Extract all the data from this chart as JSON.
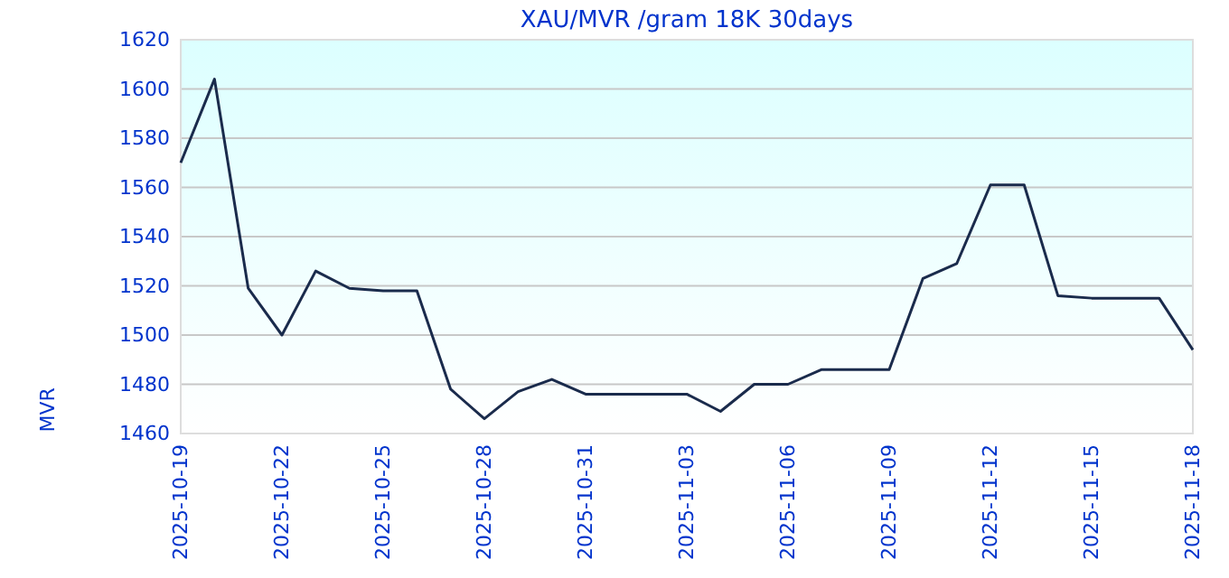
{
  "chart_data": {
    "type": "line",
    "title": "XAU/MVR /gram 18K 30days",
    "ylabel": "MVR",
    "x": [
      "2025-10-19",
      "2025-10-20",
      "2025-10-21",
      "2025-10-22",
      "2025-10-23",
      "2025-10-24",
      "2025-10-25",
      "2025-10-26",
      "2025-10-27",
      "2025-10-28",
      "2025-10-29",
      "2025-10-30",
      "2025-10-31",
      "2025-11-01",
      "2025-11-02",
      "2025-11-03",
      "2025-11-04",
      "2025-11-05",
      "2025-11-06",
      "2025-11-07",
      "2025-11-08",
      "2025-11-09",
      "2025-11-10",
      "2025-11-11",
      "2025-11-12",
      "2025-11-13",
      "2025-11-14",
      "2025-11-15",
      "2025-11-16",
      "2025-11-17",
      "2025-11-18"
    ],
    "series": [
      {
        "color": "#1a2b4c",
        "values": [
          1570,
          1604,
          1519,
          1500,
          1526,
          1519,
          1518,
          1518,
          1478,
          1466,
          1477,
          1482,
          1476,
          1476,
          1476,
          1476,
          1469,
          1480,
          1480,
          1486,
          1486,
          1486,
          1523,
          1529,
          1561,
          1561,
          1516,
          1515,
          1515,
          1515,
          1494
        ]
      }
    ],
    "xlim": [
      "2025-10-19",
      "2025-11-18"
    ],
    "xticks": [
      "2025-10-19",
      "2025-10-22",
      "2025-10-25",
      "2025-10-28",
      "2025-10-31",
      "2025-11-03",
      "2025-11-06",
      "2025-11-09",
      "2025-11-12",
      "2025-11-15",
      "2025-11-18"
    ],
    "ylim": [
      1460,
      1620
    ],
    "yticks": [
      1460,
      1480,
      1500,
      1520,
      1540,
      1560,
      1580,
      1600,
      1620
    ],
    "grid": "y",
    "marker": "none",
    "line_style": "solid"
  }
}
